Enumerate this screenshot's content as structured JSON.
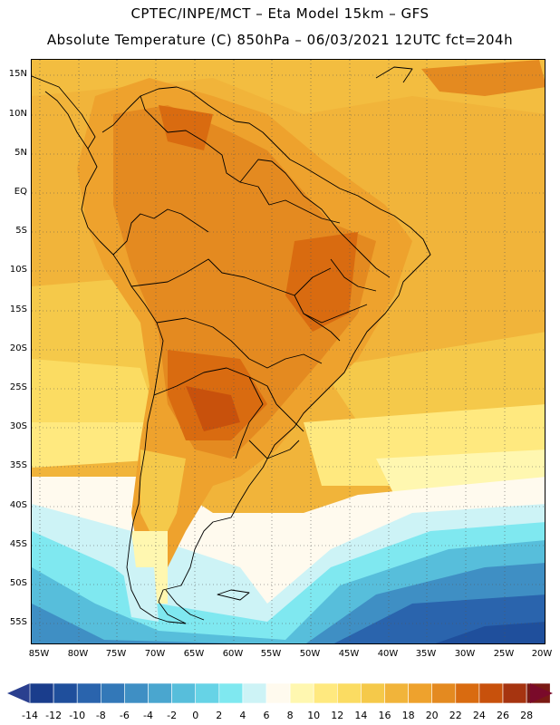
{
  "header": {
    "line1": "CPTEC/INPE/MCT –  Eta Model 15km – GFS",
    "line2": "Absolute Temperature (C) 850hPa – 06/03/2021 12UTC fct=204h"
  },
  "axes": {
    "lat_labels": [
      "15N",
      "10N",
      "5N",
      "EQ",
      "5S",
      "10S",
      "15S",
      "20S",
      "25S",
      "30S",
      "35S",
      "40S",
      "45S",
      "50S",
      "55S"
    ],
    "lon_labels": [
      "85W",
      "80W",
      "75W",
      "70W",
      "65W",
      "60W",
      "55W",
      "50W",
      "45W",
      "40W",
      "35W",
      "30W",
      "25W",
      "20W"
    ]
  },
  "colorbar": {
    "labels": [
      "-14",
      "-12",
      "-10",
      "-8",
      "-6",
      "-4",
      "-2",
      "0",
      "2",
      "4",
      "6",
      "8",
      "10",
      "12",
      "14",
      "16",
      "18",
      "20",
      "22",
      "24",
      "26",
      "28"
    ],
    "colors": [
      "#1a3d8c",
      "#1f4f9c",
      "#2a64ad",
      "#3378b8",
      "#3f8fc4",
      "#4aa6cf",
      "#57bedb",
      "#66d3e6",
      "#7fe8f0",
      "#cdf3f6",
      "#fffaee",
      "#fff7b0",
      "#ffe97f",
      "#fbdc62",
      "#f5c94a",
      "#f1b43a",
      "#eea22d",
      "#e48a20",
      "#d96b10",
      "#c8510c",
      "#a63410",
      "#7a1a14"
    ],
    "left_arrow_color": "#2a3f8f",
    "right_arrow_color": "#7a0a2a"
  }
}
